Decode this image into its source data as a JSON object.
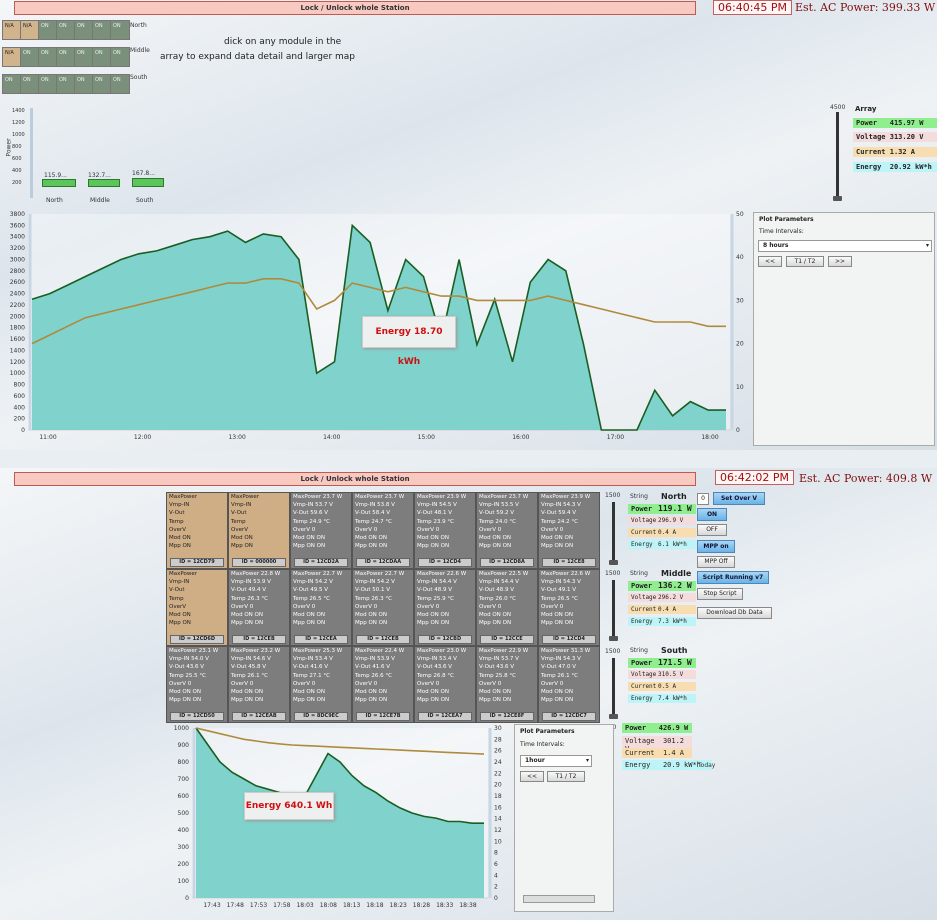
{
  "top": {
    "lock_label": "Lock / Unlock whole Station",
    "clock": "06:40:45 PM",
    "ac_power": "Est. AC Power: 399.33 W",
    "hint_line1": "dick on any module in the",
    "hint_line2": "array to expand data detail and larger map",
    "row_labels": [
      "North",
      "Middle",
      "South"
    ],
    "grid_rows": [
      [
        "N/A",
        "N/A",
        "ON",
        "ON",
        "ON",
        "ON",
        "ON"
      ],
      [
        "N/A",
        "ON",
        "ON",
        "ON",
        "ON",
        "ON",
        "ON"
      ],
      [
        "ON",
        "ON",
        "ON",
        "ON",
        "ON",
        "ON",
        "ON"
      ]
    ],
    "mini_bars": {
      "axis_label": "Power",
      "y_ticks": [
        "1400",
        "1200",
        "1000",
        "800",
        "600",
        "400",
        "200"
      ],
      "bars": [
        {
          "value": "115.9...",
          "label": "North"
        },
        {
          "value": "132.7...",
          "label": "Middle"
        },
        {
          "value": "167.8...",
          "label": "South"
        }
      ]
    },
    "array": {
      "slider_max": "4500",
      "title": "Array",
      "power_label": "Power",
      "power": "415.97 W",
      "voltage_label": "Voltage",
      "voltage": "313.20 V",
      "current_label": "Current",
      "current": "1.32 A",
      "energy_label": "Energy",
      "energy": "20.92 kW*h"
    },
    "plot_params": {
      "title": "Plot Parameters",
      "intervals_label": "Time Intervals:",
      "selected": "8 hours",
      "prev": "<<",
      "mid": "T1 / T2",
      "next": ">>"
    },
    "energy_box": "Energy 18.70 kWh"
  },
  "chart_top": {
    "type": "area",
    "y_ticks": [
      "3800",
      "3600",
      "3400",
      "3200",
      "3000",
      "2800",
      "2600",
      "2400",
      "2200",
      "2000",
      "1800",
      "1600",
      "1400",
      "1200",
      "1000",
      "800",
      "600",
      "400",
      "200",
      "0"
    ],
    "y2_ticks": [
      "50",
      "40",
      "30",
      "20",
      "10",
      "0"
    ],
    "x_ticks": [
      "11:00",
      "12:00",
      "13:00",
      "14:00",
      "15:00",
      "16:00",
      "17:00",
      "18:00"
    ],
    "ylim": [
      0,
      3800
    ],
    "y2lim": [
      0,
      50
    ],
    "power": [
      2300,
      2400,
      2550,
      2700,
      2850,
      3000,
      3100,
      3150,
      3250,
      3350,
      3400,
      3500,
      3300,
      3450,
      3400,
      3000,
      1000,
      1200,
      3600,
      3300,
      2100,
      3000,
      2700,
      1600,
      3000,
      1500,
      2300,
      1200,
      2600,
      3000,
      2800,
      1500,
      0,
      0,
      0,
      700,
      250,
      500,
      350,
      350
    ],
    "temp": [
      20,
      22,
      24,
      26,
      27,
      28,
      29,
      30,
      31,
      32,
      33,
      34,
      34,
      35,
      35,
      34,
      28,
      30,
      34,
      33,
      32,
      33,
      32,
      31,
      31,
      30,
      30,
      30,
      30,
      31,
      30,
      29,
      28,
      27,
      26,
      25,
      25,
      25,
      24,
      24
    ]
  },
  "bottom": {
    "lock_label": "Lock / Unlock whole Station",
    "clock": "06:42:02 PM",
    "ac_power": "Est. AC Power: 409.8 W",
    "modules": [
      [
        {
          "t": "tan",
          "l": [
            "MaxPower",
            "Vmp-IN",
            "V-Out",
            "Temp",
            "OverV",
            "Mod ON",
            "Mpp ON"
          ],
          "id": "ID = 12CD79"
        },
        {
          "t": "tan",
          "l": [
            "MaxPower",
            "Vmp-IN",
            "V-Out",
            "Temp",
            "OverV",
            "Mod ON",
            "Mpp ON"
          ],
          "id": "ID = 000000"
        },
        {
          "t": "gry",
          "l": [
            "MaxPower 23.7 W",
            "Vmp-IN      53.7 V",
            "V-Out       59.6 V",
            "Temp        24.9 °C",
            "OverV       0",
            "Mod ON      ON",
            "Mpp ON      ON"
          ],
          "id": "ID = 12CD2A"
        },
        {
          "t": "gry",
          "l": [
            "MaxPower 23.7 W",
            "Vmp-IN      53.8 V",
            "V-Out       58.4 V",
            "Temp        24.7 °C",
            "OverV       0",
            "Mod ON      ON",
            "Mpp ON      ON"
          ],
          "id": "ID = 12CDAA"
        },
        {
          "t": "gry",
          "l": [
            "MaxPower 23.9 W",
            "Vmp-IN      54.5 V",
            "V-Out       48.1 V",
            "Temp        23.9 °C",
            "OverV       0",
            "Mod ON      ON",
            "Mpp ON      ON"
          ],
          "id": "ID = 12CD4"
        },
        {
          "t": "gry",
          "l": [
            "MaxPower 23.7 W",
            "Vmp-IN      53.5 V",
            "V-Out       59.2 V",
            "Temp        24.0 °C",
            "OverV       0",
            "Mod ON      ON",
            "Mpp ON      ON"
          ],
          "id": "ID = 12CD8A"
        },
        {
          "t": "gry",
          "l": [
            "MaxPower 23.9 W",
            "Vmp-IN      54.3 V",
            "V-Out       59.4 V",
            "Temp        24.2 °C",
            "OverV       0",
            "Mod ON      ON",
            "Mpp ON      ON"
          ],
          "id": "ID = 12CE8"
        }
      ],
      [
        {
          "t": "tan",
          "l": [
            "MaxPower",
            "Vmp-IN",
            "V-Out",
            "Temp",
            "OverV",
            "Mod ON",
            "Mpp ON"
          ],
          "id": "ID = 12CD6D"
        },
        {
          "t": "gry",
          "l": [
            "MaxPower 22.8 W",
            "Vmp-IN      53.9 V",
            "V-Out       49.4 V",
            "Temp        26.3 °C",
            "OverV       0",
            "Mod ON      ON",
            "Mpp ON      ON"
          ],
          "id": "ID = 12CEB"
        },
        {
          "t": "gry",
          "l": [
            "MaxPower 22.7 W",
            "Vmp-IN      54.2 V",
            "V-Out       49.5 V",
            "Temp        26.5 °C",
            "OverV       0",
            "Mod ON      ON",
            "Mpp ON      ON"
          ],
          "id": "ID = 12CEA"
        },
        {
          "t": "gry",
          "l": [
            "MaxPower 22.7 W",
            "Vmp-IN      54.2 V",
            "V-Out       50.1 V",
            "Temp        26.3 °C",
            "OverV       0",
            "Mod ON      ON",
            "Mpp ON      ON"
          ],
          "id": "ID = 12CEB"
        },
        {
          "t": "gry",
          "l": [
            "MaxPower 22.6 W",
            "Vmp-IN      54.4 V",
            "V-Out       48.9 V",
            "Temp        25.9 °C",
            "OverV       0",
            "Mod ON      ON",
            "Mpp ON      ON"
          ],
          "id": "ID = 12CBD"
        },
        {
          "t": "gry",
          "l": [
            "MaxPower 22.5 W",
            "Vmp-IN      54.4 V",
            "V-Out       48.9 V",
            "Temp        26.0 °C",
            "OverV       0",
            "Mod ON      ON",
            "Mpp ON      ON"
          ],
          "id": "ID = 12CCE"
        },
        {
          "t": "gry",
          "l": [
            "MaxPower 22.6 W",
            "Vmp-IN      54.3 V",
            "V-Out       49.1 V",
            "Temp        26.5 °C",
            "OverV       0",
            "Mod ON      ON",
            "Mpp ON      ON"
          ],
          "id": "ID = 12CD4"
        }
      ],
      [
        {
          "t": "gry",
          "l": [
            "MaxPower 23.1 W",
            "Vmp-IN      54.0 V",
            "V-Out       43.6 V",
            "Temp        25.5 °C",
            "OverV       0",
            "Mod ON      ON",
            "Mpp ON      ON"
          ],
          "id": "ID = 12CD50"
        },
        {
          "t": "gry",
          "l": [
            "MaxPower 23.2 W",
            "Vmp-IN      54.6 V",
            "V-Out       45.8 V",
            "Temp        26.1 °C",
            "OverV       0",
            "Mod ON      ON",
            "Mpp ON      ON"
          ],
          "id": "ID = 12CEAB"
        },
        {
          "t": "gry",
          "l": [
            "MaxPower 25.3 W",
            "Vmp-IN      53.4 V",
            "V-Out       41.6 V",
            "Temp        27.1 °C",
            "OverV       0",
            "Mod ON      ON",
            "Mpp ON      ON"
          ],
          "id": "ID = 8DC9EC"
        },
        {
          "t": "gry",
          "l": [
            "MaxPower 22.4 W",
            "Vmp-IN      53.9 V",
            "V-Out       41.6 V",
            "Temp        26.6 °C",
            "OverV       0",
            "Mod ON      ON",
            "Mpp ON      ON"
          ],
          "id": "ID = 12CE7B"
        },
        {
          "t": "gry",
          "l": [
            "MaxPower 23.0 W",
            "Vmp-IN      53.4 V",
            "V-Out       43.6 V",
            "Temp        26.8 °C",
            "OverV       0",
            "Mod ON      ON",
            "Mpp ON      ON"
          ],
          "id": "ID = 12CEA7"
        },
        {
          "t": "gry",
          "l": [
            "MaxPower 22.9 W",
            "Vmp-IN      53.7 V",
            "V-Out       43.6 V",
            "Temp        25.8 °C",
            "OverV       0",
            "Mod ON      ON",
            "Mpp ON      ON"
          ],
          "id": "ID = 12CE8F"
        },
        {
          "t": "gry",
          "l": [
            "MaxPower 31.3 W",
            "Vmp-IN      54.3 V",
            "V-Out       47.0 V",
            "Temp        26.1 °C",
            "OverV       0",
            "Mod ON      ON",
            "Mpp ON      ON"
          ],
          "id": "ID = 12CDC7"
        }
      ]
    ],
    "strings": [
      {
        "slider_max": "1500",
        "label": "String",
        "name": "North",
        "power": "119.1 W",
        "voltage": "296.9 V",
        "current": "0.4 A",
        "energy": "6.1 kW*h"
      },
      {
        "slider_max": "1500",
        "label": "String",
        "name": "Middle",
        "power": "136.2 W",
        "voltage": "296.2 V",
        "current": "0.4 A",
        "energy": "7.3 kW*h"
      },
      {
        "slider_max": "1500",
        "label": "String",
        "name": "South",
        "power": "171.5 W",
        "voltage": "310.5 V",
        "current": "0.5 A",
        "energy": "7.4 kW*h"
      }
    ],
    "stat_labels": {
      "power": "Power",
      "voltage": "Voltage",
      "current": "Current",
      "energy": "Energy"
    },
    "controls": {
      "overv_value": "0",
      "set_over_v": "Set Over V",
      "on": "ON",
      "off": "OFF",
      "mpp_on": "MPP on",
      "mpp_off": "MPP Off",
      "script_running": "Script Running v7",
      "stop_script": "Stop Script",
      "download": "Download Db Data"
    },
    "total": {
      "slider_max": "4500",
      "power": "426.9 W",
      "voltage": "301.2 V",
      "current": "1.4 A",
      "energy": "20.9 kW*h",
      "today": "Today"
    },
    "plot_params": {
      "title": "Plot Parameters",
      "intervals_label": "Time Intervals:",
      "selected": "1hour",
      "prev": "<<",
      "mid": "T1 / T2"
    },
    "energy_box": "Energy 640.1 Wh"
  },
  "chart_bottom": {
    "type": "area",
    "y_ticks": [
      "1000",
      "900",
      "800",
      "700",
      "600",
      "500",
      "400",
      "300",
      "200",
      "100",
      "0"
    ],
    "y2_ticks": [
      "30",
      "28",
      "26",
      "24",
      "22",
      "20",
      "18",
      "16",
      "14",
      "12",
      "10",
      "8",
      "6",
      "4",
      "2",
      "0"
    ],
    "x_ticks": [
      "17:43",
      "17:48",
      "17:53",
      "17:58",
      "18:03",
      "18:08",
      "18:13",
      "18:18",
      "18:23",
      "18:28",
      "18:33",
      "18:38"
    ],
    "ylim": [
      0,
      1000
    ],
    "y2lim": [
      0,
      30
    ],
    "power": [
      1000,
      900,
      800,
      740,
      700,
      660,
      640,
      620,
      600,
      590,
      720,
      850,
      800,
      720,
      660,
      620,
      570,
      530,
      500,
      480,
      470,
      450,
      450,
      440,
      440
    ],
    "temp": [
      30,
      29.5,
      29,
      28.5,
      28,
      27.7,
      27.4,
      27.2,
      27,
      26.9,
      26.8,
      26.7,
      26.6,
      26.5,
      26.4,
      26.3,
      26.2,
      26.1,
      26,
      25.9,
      25.8,
      25.7,
      25.6,
      25.5,
      25.4
    ]
  }
}
